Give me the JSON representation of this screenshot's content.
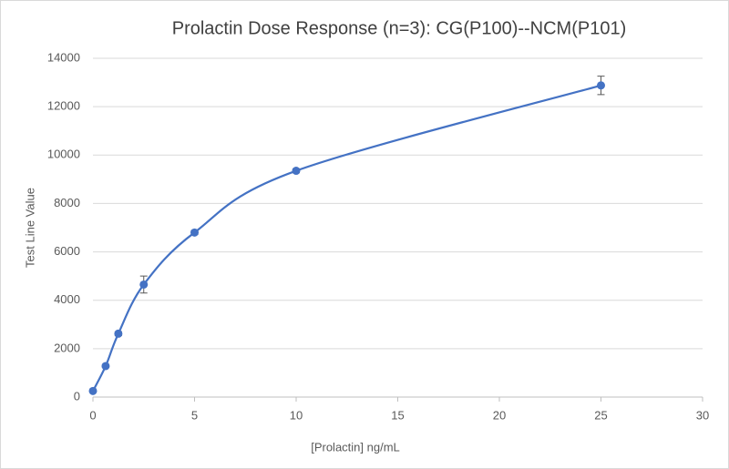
{
  "chart_data": {
    "type": "scatter",
    "title": "Prolactin Dose Response (n=3): CG(P100)--NCM(P101)",
    "x_label": "[Prolactin] ng/mL",
    "y_label": "Test Line Value",
    "series": [
      {
        "color": "#4472c4",
        "x": [
          0,
          0.625,
          1.25,
          2.5,
          5,
          10,
          25
        ],
        "values": [
          250,
          1280,
          2620,
          4650,
          6800,
          9350,
          12880
        ],
        "errors": [
          50,
          60,
          80,
          350,
          80,
          80,
          380
        ]
      }
    ],
    "xlim": [
      0,
      30
    ],
    "xticks": [
      0,
      5,
      10,
      15,
      20,
      25,
      30
    ],
    "ylim": [
      0,
      14000
    ],
    "yticks": [
      0,
      2000,
      4000,
      6000,
      8000,
      10000,
      12000,
      14000
    ],
    "grid": true
  }
}
